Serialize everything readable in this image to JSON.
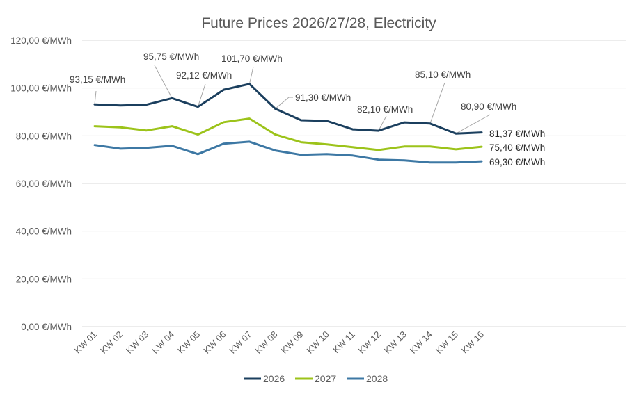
{
  "chart_data": {
    "type": "line",
    "title": "Future Prices 2026/27/28, Electricity",
    "xlabel": "",
    "ylabel": "",
    "ylim": [
      0,
      120
    ],
    "yticks": [
      0,
      20,
      40,
      60,
      80,
      100,
      120
    ],
    "ytick_labels": [
      "0,00 €/MWh",
      "20,00 €/MWh",
      "40,00 €/MWh",
      "60,00 €/MWh",
      "80,00 €/MWh",
      "100,00 €/MWh",
      "120,00 €/MWh"
    ],
    "grid": true,
    "legend_position": "bottom",
    "categories": [
      "KW 01",
      "KW 02",
      "KW 03",
      "KW 04",
      "KW 05",
      "KW 06",
      "KW 07",
      "KW 08",
      "KW 09",
      "KW 10",
      "KW 11",
      "KW 12",
      "KW 13",
      "KW 14",
      "KW 15",
      "KW 16"
    ],
    "series": [
      {
        "name": "2026",
        "color": "#1b3f5e",
        "values": [
          93.15,
          92.7,
          93.0,
          95.75,
          92.12,
          99.3,
          101.7,
          91.3,
          86.5,
          86.2,
          82.7,
          82.1,
          85.6,
          85.1,
          80.9,
          81.37
        ]
      },
      {
        "name": "2027",
        "color": "#9cc31a",
        "values": [
          84.0,
          83.5,
          82.2,
          84.0,
          80.5,
          85.7,
          87.2,
          80.5,
          77.3,
          76.4,
          75.2,
          74.0,
          75.5,
          75.5,
          74.3,
          75.4
        ]
      },
      {
        "name": "2028",
        "color": "#3d78a4",
        "values": [
          76.1,
          74.6,
          74.9,
          75.8,
          72.3,
          76.7,
          77.5,
          73.8,
          72.0,
          72.3,
          71.7,
          70.0,
          69.7,
          68.8,
          68.8,
          69.3
        ]
      }
    ],
    "annotations": [
      {
        "series": 0,
        "index": 0,
        "text": "93,15 €/MWh"
      },
      {
        "series": 0,
        "index": 3,
        "text": "95,75 €/MWh"
      },
      {
        "series": 0,
        "index": 4,
        "text": "92,12 €/MWh"
      },
      {
        "series": 0,
        "index": 6,
        "text": "101,70 €/MWh"
      },
      {
        "series": 0,
        "index": 7,
        "text": "91,30 €/MWh"
      },
      {
        "series": 0,
        "index": 11,
        "text": "82,10 €/MWh"
      },
      {
        "series": 0,
        "index": 13,
        "text": "85,10 €/MWh"
      },
      {
        "series": 0,
        "index": 14,
        "text": "80,90 €/MWh"
      },
      {
        "series": 0,
        "index": 15,
        "text": "81,37 €/MWh"
      },
      {
        "series": 1,
        "index": 15,
        "text": "75,40 €/MWh"
      },
      {
        "series": 2,
        "index": 15,
        "text": "69,30 €/MWh"
      }
    ]
  }
}
